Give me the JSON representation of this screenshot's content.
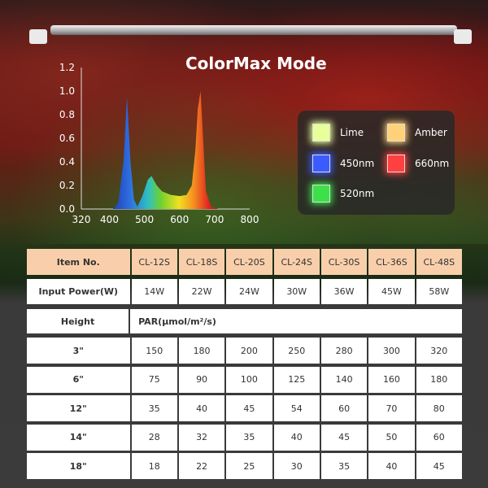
{
  "title": "ColorMax Mode",
  "legend": [
    {
      "label": "Lime",
      "color": "#e8ff9a"
    },
    {
      "label": "Amber",
      "color": "#ffd27a"
    },
    {
      "label": "450nm",
      "color": "#3a5cff"
    },
    {
      "label": "660nm",
      "color": "#ff4040"
    },
    {
      "label": "520nm",
      "color": "#3ee04a"
    }
  ],
  "chart_data": {
    "type": "area",
    "title": "",
    "xlabel": "",
    "ylabel": "",
    "xlim": [
      320,
      800
    ],
    "ylim": [
      0,
      1.2
    ],
    "x_ticks": [
      "320",
      "400",
      "500",
      "600",
      "700",
      "800"
    ],
    "y_ticks": [
      "0.0",
      "0.2",
      "0.4",
      "0.6",
      "0.8",
      "1.0",
      "1.2"
    ],
    "grid": false,
    "series": [
      {
        "x": [
          410,
          425,
          440,
          450,
          460,
          470,
          480,
          495,
          510,
          520,
          535,
          550,
          575,
          600,
          620,
          635,
          645,
          652,
          660,
          668,
          675,
          690,
          710
        ],
        "y": [
          0,
          0.05,
          0.4,
          0.95,
          0.4,
          0.08,
          0.02,
          0.12,
          0.25,
          0.28,
          0.2,
          0.15,
          0.12,
          0.11,
          0.12,
          0.2,
          0.5,
          0.85,
          1.0,
          0.55,
          0.15,
          0.02,
          0
        ]
      }
    ]
  },
  "table": {
    "item_label": "Item No.",
    "models": [
      "CL-12S",
      "CL-18S",
      "CL-20S",
      "CL-24S",
      "CL-30S",
      "CL-36S",
      "CL-48S"
    ],
    "power_label": "Input Power(W)",
    "power": [
      "14W",
      "22W",
      "24W",
      "30W",
      "36W",
      "45W",
      "58W"
    ],
    "height_label": "Height",
    "par_label": "PAR(μmol/m²/s)",
    "rows": [
      {
        "height": "3\"",
        "values": [
          "150",
          "180",
          "200",
          "250",
          "280",
          "300",
          "320"
        ]
      },
      {
        "height": "6\"",
        "values": [
          "75",
          "90",
          "100",
          "125",
          "140",
          "160",
          "180"
        ]
      },
      {
        "height": "12\"",
        "values": [
          "35",
          "40",
          "45",
          "54",
          "60",
          "70",
          "80"
        ]
      },
      {
        "height": "14\"",
        "values": [
          "28",
          "32",
          "35",
          "40",
          "45",
          "50",
          "60"
        ]
      },
      {
        "height": "18\"",
        "values": [
          "18",
          "22",
          "25",
          "30",
          "35",
          "40",
          "45"
        ]
      }
    ]
  }
}
